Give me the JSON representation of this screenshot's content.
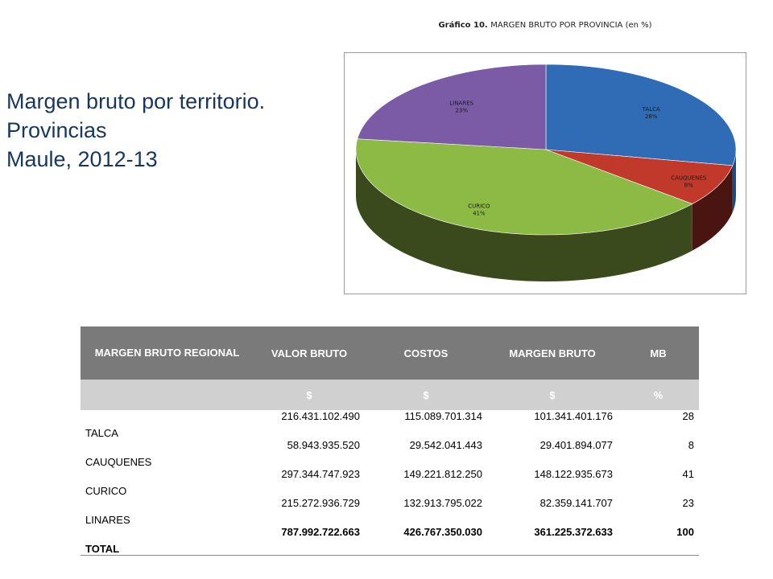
{
  "slide": {
    "title_line1": "Margen bruto por territorio.",
    "title_line2": "Provincias",
    "title_line3": "Maule, 2012-13"
  },
  "chart_title": {
    "bold": "Gráfico 10. ",
    "main": "MARGEN BRUTO POR PROVINCIA",
    "suffix": " (en %)"
  },
  "chart_data": {
    "type": "pie",
    "title": "Gráfico 10. MARGEN BRUTO POR PROVINCIA (en %)",
    "categories": [
      "TALCA",
      "CAUQUENES",
      "CURICO",
      "LINARES"
    ],
    "values": [
      28,
      8,
      41,
      23
    ],
    "labels": [
      "28%",
      "8%",
      "41%",
      "23%"
    ],
    "colors": [
      "#2F6CB5",
      "#C0392B",
      "#8DBA44",
      "#7B5BA6"
    ],
    "shadow_colors": [
      "#1E4A7E",
      "#4a1410",
      "#3a4a1c",
      "#4f3a6e"
    ]
  },
  "table": {
    "headers": [
      "MARGEN BRUTO REGIONAL",
      "VALOR BRUTO",
      "COSTOS",
      "MARGEN BRUTO",
      "MB"
    ],
    "units": [
      "",
      "$",
      "$",
      "$",
      "%"
    ],
    "rows": [
      [
        "TALCA",
        "216.431.102.490",
        "115.089.701.314",
        "101.341.401.176",
        "28"
      ],
      [
        "CAUQUENES",
        "58.943.935.520",
        "29.542.041.443",
        "29.401.894.077",
        "8"
      ],
      [
        "CURICO",
        "297.344.747.923",
        "149.221.812.250",
        "148.122.935.673",
        "41"
      ],
      [
        "LINARES",
        "215.272.936.729",
        "132.913.795.022",
        "82.359.141.707",
        "23"
      ],
      [
        "TOTAL",
        "787.992.722.663",
        "426.767.350.030",
        "361.225.372.633",
        "100"
      ]
    ]
  }
}
